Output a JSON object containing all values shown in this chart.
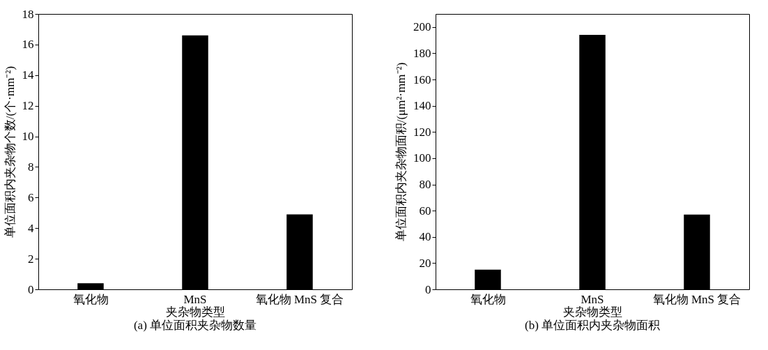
{
  "chart_data": [
    {
      "type": "bar",
      "title": "(a) 单位面积夹杂物数量",
      "xlabel": "夹杂物类型",
      "ylabel": "单位面积内夹杂物个数/(个·mm⁻²)",
      "categories": [
        "氧化物",
        "MnS",
        "氧化物 MnS 复合"
      ],
      "values": [
        0.4,
        16.6,
        4.9
      ],
      "color": "#000000",
      "ylim": [
        0,
        18
      ],
      "yticks": [
        0,
        2,
        4,
        6,
        8,
        10,
        12,
        14,
        16,
        18
      ],
      "grid": false
    },
    {
      "type": "bar",
      "title": "(b) 单位面积内夹杂物面积",
      "xlabel": "夹杂物类型",
      "ylabel": "单位面积内夹杂物面积/(μm²·mm⁻²)",
      "categories": [
        "氧化物",
        "MnS",
        "氧化物 MnS 复合"
      ],
      "values": [
        15,
        194,
        57
      ],
      "color": "#000000",
      "ylim": [
        0,
        210
      ],
      "yticks": [
        0,
        20,
        40,
        60,
        80,
        100,
        120,
        140,
        160,
        180,
        200
      ],
      "grid": false
    }
  ]
}
